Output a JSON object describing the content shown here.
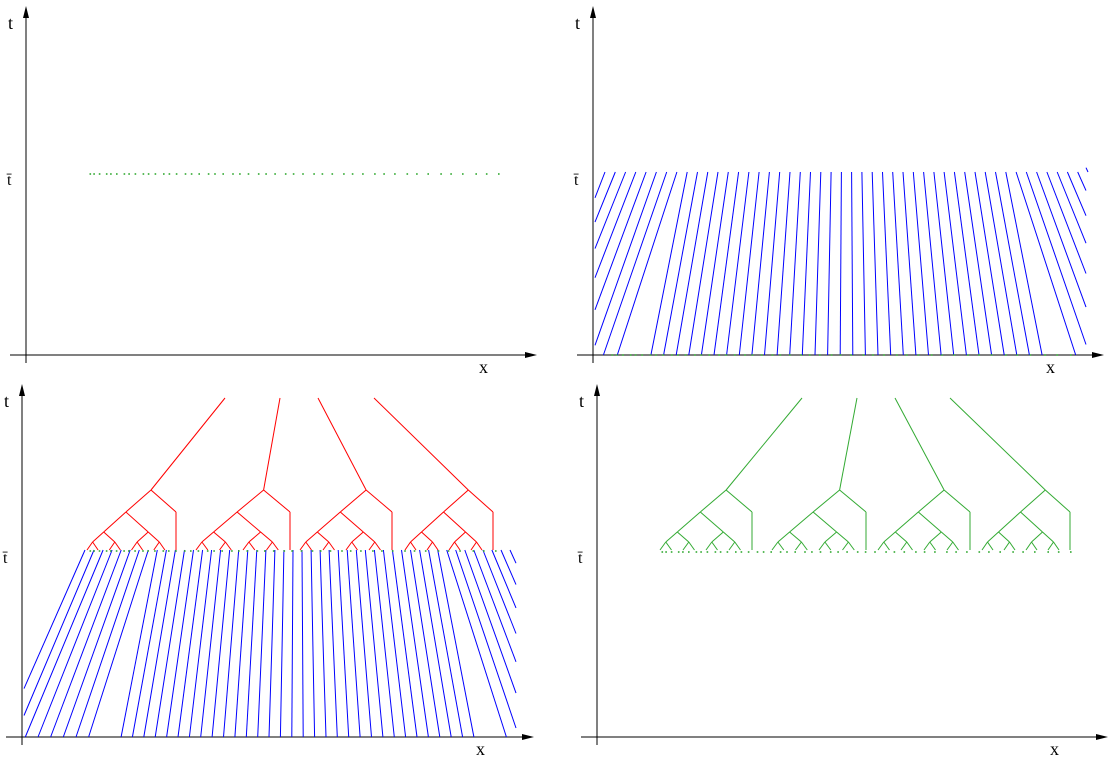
{
  "labels": {
    "t_axis": "t",
    "x_axis": "x",
    "tbar": "t̄"
  },
  "colors": {
    "axis": "#000000",
    "dots": "#33aa33",
    "characteristics": "#0000ff",
    "tree_red": "#ff0000",
    "tree_green": "#33aa33"
  },
  "panels": [
    {
      "id": "top-left",
      "shows": [
        "dots"
      ]
    },
    {
      "id": "top-right",
      "shows": [
        "characteristics"
      ]
    },
    {
      "id": "bottom-left",
      "shows": [
        "characteristics",
        "tree_red"
      ]
    },
    {
      "id": "bottom-right",
      "shows": [
        "tree_green"
      ]
    }
  ]
}
